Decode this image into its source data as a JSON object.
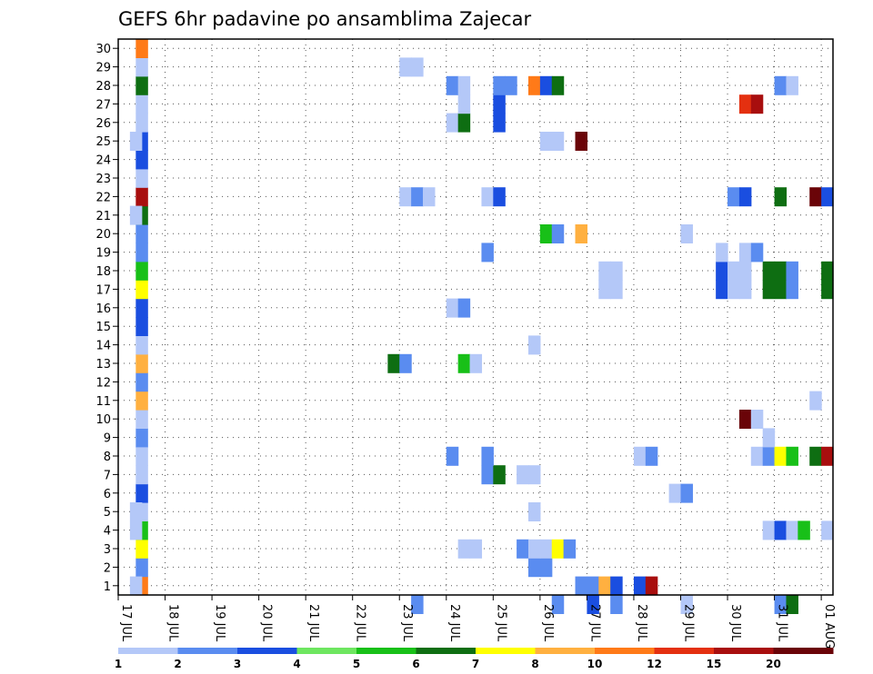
{
  "chart_data": {
    "type": "heatmap",
    "title": "GEFS 6hr padavine po ansamblima Zajecar",
    "xlabel": "",
    "ylabel": "",
    "x_ticks": [
      "17 JUL",
      "18 JUL",
      "19 JUL",
      "20 JUL",
      "21 JUL",
      "22 JUL",
      "23 JUL",
      "24 JUL",
      "25 JUL",
      "26 JUL",
      "27 JUL",
      "28 JUL",
      "29 JUL",
      "30 JUL",
      "31 JUL",
      "01 AUG"
    ],
    "y_ticks": [
      1,
      2,
      3,
      4,
      5,
      6,
      7,
      8,
      9,
      10,
      11,
      12,
      13,
      14,
      15,
      16,
      17,
      18,
      19,
      20,
      21,
      22,
      23,
      24,
      25,
      26,
      27,
      28,
      29,
      30
    ],
    "x_range_steps": [
      0,
      61
    ],
    "y_range": [
      0,
      30
    ],
    "step_hours": 6,
    "grid": true,
    "legend": {
      "placement": "bottom",
      "labels": [
        "1",
        "2",
        "3",
        "4",
        "5",
        "6",
        "7",
        "8",
        "10",
        "12",
        "15",
        "20"
      ],
      "colors": [
        "#b4c8f8",
        "#5a8cf0",
        "#1a4ee0",
        "#6ee660",
        "#18c018",
        "#0e6e12",
        "#ffff00",
        "#ffb040",
        "#ff7a18",
        "#e43010",
        "#a80e0e",
        "#6a0408"
      ]
    },
    "values": [
      {
        "y": 1,
        "x": 39,
        "v": 2
      },
      {
        "y": 1,
        "x": 40,
        "v": 2
      },
      {
        "y": 1,
        "x": 41,
        "v": 8
      },
      {
        "y": 1,
        "x": 42,
        "v": 3
      },
      {
        "y": 1,
        "x": 44,
        "v": 3
      },
      {
        "y": 1,
        "x": 45,
        "v": 15
      },
      {
        "y": 2,
        "x": 35,
        "v": 2
      },
      {
        "y": 2,
        "x": 36,
        "v": 2
      },
      {
        "y": 3,
        "x": 29,
        "v": 1
      },
      {
        "y": 3,
        "x": 30,
        "v": 1
      },
      {
        "y": 3,
        "x": 34,
        "v": 2
      },
      {
        "y": 3,
        "x": 35,
        "v": 1
      },
      {
        "y": 3,
        "x": 36,
        "v": 1
      },
      {
        "y": 3,
        "x": 37,
        "v": 7
      },
      {
        "y": 3,
        "x": 38,
        "v": 2
      },
      {
        "y": 4,
        "x": 55,
        "v": 1
      },
      {
        "y": 4,
        "x": 56,
        "v": 3
      },
      {
        "y": 4,
        "x": 57,
        "v": 1
      },
      {
        "y": 4,
        "x": 58,
        "v": 5
      },
      {
        "y": 4,
        "x": 60,
        "v": 1
      },
      {
        "y": 5,
        "x": 35,
        "v": 1
      },
      {
        "y": 6,
        "x": 47,
        "v": 1
      },
      {
        "y": 6,
        "x": 48,
        "v": 2
      },
      {
        "y": 7,
        "x": 31,
        "v": 2
      },
      {
        "y": 7,
        "x": 32,
        "v": 6
      },
      {
        "y": 7,
        "x": 34,
        "v": 1
      },
      {
        "y": 7,
        "x": 35,
        "v": 1
      },
      {
        "y": 8,
        "x": 28,
        "v": 2
      },
      {
        "y": 8,
        "x": 31,
        "v": 2
      },
      {
        "y": 8,
        "x": 44,
        "v": 1
      },
      {
        "y": 8,
        "x": 45,
        "v": 2
      },
      {
        "y": 8,
        "x": 54,
        "v": 1
      },
      {
        "y": 8,
        "x": 55,
        "v": 2
      },
      {
        "y": 8,
        "x": 56,
        "v": 7
      },
      {
        "y": 8,
        "x": 57,
        "v": 5
      },
      {
        "y": 8,
        "x": 59,
        "v": 6
      },
      {
        "y": 8,
        "x": 60,
        "v": 15
      },
      {
        "y": 9,
        "x": 55,
        "v": 1
      },
      {
        "y": 10,
        "x": 53,
        "v": 20
      },
      {
        "y": 10,
        "x": 54,
        "v": 1
      },
      {
        "y": 11,
        "x": 59,
        "v": 1
      },
      {
        "y": 13,
        "x": 23,
        "v": 6
      },
      {
        "y": 13,
        "x": 24,
        "v": 2
      },
      {
        "y": 13,
        "x": 29,
        "v": 5
      },
      {
        "y": 13,
        "x": 30,
        "v": 1
      },
      {
        "y": 14,
        "x": 35,
        "v": 1
      },
      {
        "y": 16,
        "x": 28,
        "v": 1
      },
      {
        "y": 16,
        "x": 29,
        "v": 2
      },
      {
        "y": 17,
        "x": 41,
        "v": 1
      },
      {
        "y": 17,
        "x": 42,
        "v": 1
      },
      {
        "y": 17,
        "x": 51,
        "v": 3
      },
      {
        "y": 17,
        "x": 52,
        "v": 1
      },
      {
        "y": 17,
        "x": 53,
        "v": 1
      },
      {
        "y": 17,
        "x": 55,
        "v": 6
      },
      {
        "y": 17,
        "x": 56,
        "v": 6
      },
      {
        "y": 17,
        "x": 57,
        "v": 2
      },
      {
        "y": 17,
        "x": 60,
        "v": 6
      },
      {
        "y": 18,
        "x": 41,
        "v": 1
      },
      {
        "y": 18,
        "x": 42,
        "v": 1
      },
      {
        "y": 18,
        "x": 51,
        "v": 3
      },
      {
        "y": 18,
        "x": 52,
        "v": 1
      },
      {
        "y": 18,
        "x": 53,
        "v": 1
      },
      {
        "y": 18,
        "x": 55,
        "v": 6
      },
      {
        "y": 18,
        "x": 56,
        "v": 6
      },
      {
        "y": 18,
        "x": 57,
        "v": 2
      },
      {
        "y": 18,
        "x": 60,
        "v": 6
      },
      {
        "y": 19,
        "x": 31,
        "v": 2
      },
      {
        "y": 19,
        "x": 51,
        "v": 1
      },
      {
        "y": 19,
        "x": 53,
        "v": 1
      },
      {
        "y": 19,
        "x": 54,
        "v": 2
      },
      {
        "y": 20,
        "x": 36,
        "v": 5
      },
      {
        "y": 20,
        "x": 37,
        "v": 2
      },
      {
        "y": 20,
        "x": 39,
        "v": 8
      },
      {
        "y": 20,
        "x": 48,
        "v": 1
      },
      {
        "y": 22,
        "x": 24,
        "v": 1
      },
      {
        "y": 22,
        "x": 25,
        "v": 2
      },
      {
        "y": 22,
        "x": 26,
        "v": 1
      },
      {
        "y": 22,
        "x": 31,
        "v": 1
      },
      {
        "y": 22,
        "x": 32,
        "v": 3
      },
      {
        "y": 22,
        "x": 52,
        "v": 2
      },
      {
        "y": 22,
        "x": 53,
        "v": 3
      },
      {
        "y": 22,
        "x": 56,
        "v": 6
      },
      {
        "y": 22,
        "x": 59,
        "v": 20
      },
      {
        "y": 22,
        "x": 60,
        "v": 3
      },
      {
        "y": 25,
        "x": 36,
        "v": 1
      },
      {
        "y": 25,
        "x": 37,
        "v": 1
      },
      {
        "y": 25,
        "x": 39,
        "v": 20
      },
      {
        "y": 26,
        "x": 28,
        "v": 1
      },
      {
        "y": 26,
        "x": 29,
        "v": 6
      },
      {
        "y": 26,
        "x": 32,
        "v": 3
      },
      {
        "y": 27,
        "x": 29,
        "v": 1
      },
      {
        "y": 27,
        "x": 32,
        "v": 3
      },
      {
        "y": 27,
        "x": 53,
        "v": 12
      },
      {
        "y": 27,
        "x": 54,
        "v": 15
      },
      {
        "y": 28,
        "x": 28,
        "v": 2
      },
      {
        "y": 28,
        "x": 29,
        "v": 1
      },
      {
        "y": 28,
        "x": 32,
        "v": 2
      },
      {
        "y": 28,
        "x": 33,
        "v": 2
      },
      {
        "y": 28,
        "x": 35,
        "v": 10
      },
      {
        "y": 28,
        "x": 36,
        "v": 3
      },
      {
        "y": 28,
        "x": 37,
        "v": 6
      },
      {
        "y": 28,
        "x": 56,
        "v": 2
      },
      {
        "y": 28,
        "x": 57,
        "v": 1
      },
      {
        "y": 29,
        "x": 24,
        "v": 1
      },
      {
        "y": 29,
        "x": 25,
        "v": 1
      }
    ],
    "column_1_values": [
      10,
      2,
      7,
      5,
      1,
      3,
      1,
      1,
      2,
      1,
      8,
      2,
      8,
      1,
      3,
      3,
      7,
      5,
      2,
      2,
      6,
      15,
      1,
      3,
      3,
      1,
      1,
      6,
      1,
      10
    ],
    "extra_blocks": [
      {
        "y": 1,
        "x": [
          0,
          1
        ],
        "v": 1
      },
      {
        "y": 4,
        "x": [
          0,
          1
        ],
        "v": 1
      },
      {
        "y": 5,
        "x": [
          0,
          1
        ],
        "v": 1
      },
      {
        "y": 21,
        "x": [
          0,
          1
        ],
        "v": 1
      },
      {
        "y": 25,
        "x": [
          0,
          1
        ],
        "v": 1
      }
    ]
  }
}
